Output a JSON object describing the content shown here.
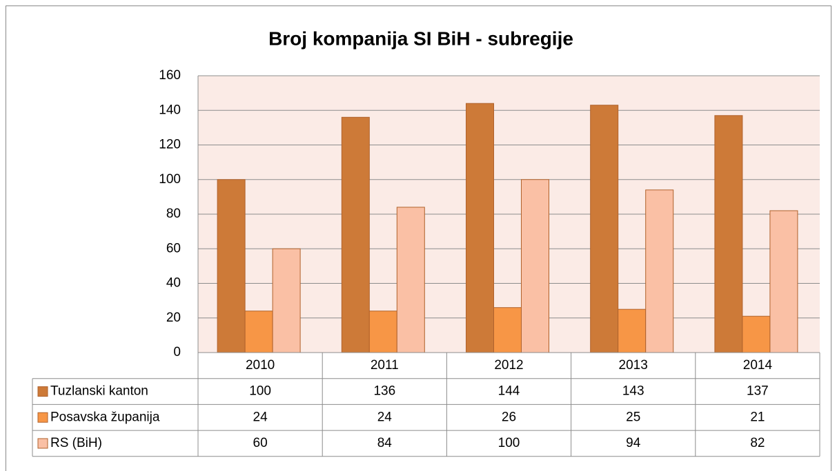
{
  "chart_data": {
    "type": "bar",
    "title": "Broj kompanija SI BiH - subregije",
    "categories": [
      "2010",
      "2011",
      "2012",
      "2013",
      "2014"
    ],
    "series": [
      {
        "name": "Tuzlanski kanton",
        "color": "#cd7a38",
        "values": [
          100,
          136,
          144,
          143,
          137
        ]
      },
      {
        "name": "Posavska županija",
        "color": "#f79646",
        "values": [
          24,
          24,
          26,
          25,
          21
        ]
      },
      {
        "name": "RS (BiH)",
        "color": "#fac0a5",
        "values": [
          60,
          84,
          100,
          94,
          82
        ]
      }
    ],
    "ylim": [
      0,
      160
    ],
    "yticks": [
      0,
      20,
      40,
      60,
      80,
      100,
      120,
      140,
      160
    ],
    "grid": true,
    "data_table": true
  }
}
